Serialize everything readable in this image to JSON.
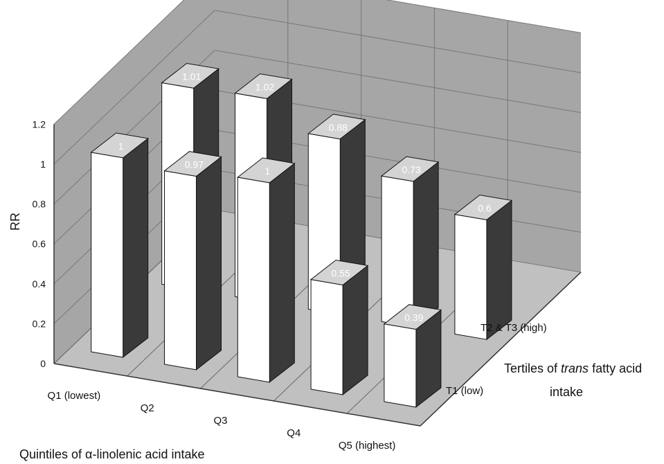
{
  "chart_data": {
    "type": "bar",
    "title": "",
    "ylabel": "RR",
    "ylim": [
      0,
      1.2
    ],
    "yticks": [
      "0",
      "0.2",
      "0.4",
      "0.6",
      "0.8",
      "1",
      "1.2"
    ],
    "categories": [
      "Q1 (lowest)",
      "Q2",
      "Q3",
      "Q4",
      "Q5 (highest)"
    ],
    "xlabel": "Quintiles of α-linolenic acid intake",
    "depth_title": {
      "pre": "Tertiles of ",
      "italic": "trans",
      "post": " fatty acid",
      "line2": "intake"
    },
    "series": [
      {
        "name": "T1 (low)",
        "values": [
          1,
          0.97,
          1,
          0.55,
          0.39
        ],
        "labels": [
          "1",
          "0.97",
          "1",
          "0.55",
          "0.39"
        ]
      },
      {
        "name": "T2 & T3 (high)",
        "values": [
          1.01,
          1.02,
          0.88,
          0.73,
          0.6
        ],
        "labels": [
          "1.01",
          "1.02",
          "0.88",
          "0.73",
          "0.6"
        ]
      }
    ],
    "colors": {
      "bar_face": "#ffffff",
      "bar_side": "#3a3a3a",
      "bar_top": "#d4d4d4",
      "wall": "#a6a6a6",
      "floor": "#c0c0c0"
    }
  }
}
